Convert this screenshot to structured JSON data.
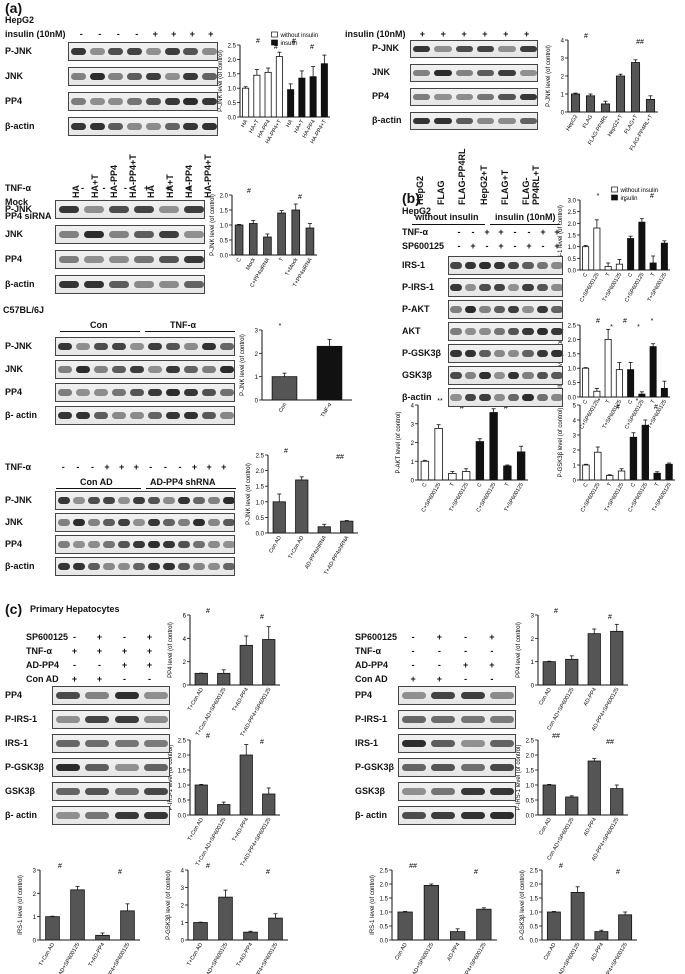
{
  "panels": {
    "a": "(a)",
    "b": "(b)",
    "c": "(c)"
  },
  "a1": {
    "cell": "HepG2",
    "insulin_label": "insulin (10nM)",
    "insulin_signs": [
      "-",
      "-",
      "-",
      "-",
      "+",
      "+",
      "+",
      "+"
    ],
    "rows": [
      "P-JNK",
      "JNK",
      "PP4",
      "β-actin"
    ],
    "lanes": [
      "HA",
      "HA+T",
      "HA-PP4",
      "HA-PP4+T",
      "HA",
      "HA+T",
      "HA-PP4",
      "HA-PP4+T"
    ]
  },
  "a2": {
    "insulin_label": "insulin (10nM)",
    "insulin_signs": [
      "+",
      "+",
      "+",
      "+",
      "+",
      "+"
    ],
    "rows": [
      "P-JNK",
      "JNK",
      "PP4",
      "β-actin"
    ],
    "lanes": [
      "HepG2",
      "FLAG",
      "FLAG-PP4RL",
      "HepG2+T",
      "FLAG+T",
      "FLAG-PP4RL+T"
    ]
  },
  "a3": {
    "rowlabels": [
      "TNF-α",
      "Mock",
      "PP4 siRNA"
    ],
    "signs": [
      [
        "-",
        "-",
        "-",
        "+",
        "+",
        "+"
      ],
      [
        "-",
        "+",
        "-",
        "-",
        "+",
        "-"
      ],
      [
        "-",
        "-",
        "+",
        "-",
        "-",
        "+"
      ]
    ],
    "rows": [
      "P-JNK",
      "JNK",
      "PP4",
      "β-actin"
    ]
  },
  "a4": {
    "strain": "C57BL/6J",
    "groups": [
      "Con",
      "TNF-α"
    ],
    "rows": [
      "P-JNK",
      "JNK",
      "PP4",
      "β- actin"
    ]
  },
  "a5": {
    "rowlabel": "TNF-α",
    "signs": [
      "-",
      "-",
      "-",
      "+",
      "+",
      "+",
      "-",
      "-",
      "-",
      "+",
      "+",
      "+"
    ],
    "groups": [
      "Con AD",
      "AD-PP4 shRNA"
    ],
    "rows": [
      "P-JNK",
      "JNK",
      "PP4",
      "β-actin"
    ]
  },
  "b": {
    "cell": "HepG2",
    "groups": [
      "without  insulin",
      "insulin (10nM)"
    ],
    "rowlabels": [
      "TNF-α",
      "SP600125"
    ],
    "signs": [
      [
        "-",
        "-",
        "+",
        "+",
        "-",
        "-",
        "+",
        "+"
      ],
      [
        "-",
        "+",
        "-",
        "+",
        "-",
        "+",
        "-",
        "+"
      ]
    ],
    "rows": [
      "IRS-1",
      "P-IRS-1",
      "P-AKT",
      "AKT",
      "P-GSK3β",
      "GSK3β",
      "β-actin"
    ]
  },
  "c": {
    "title": "Primary Hepatocytes",
    "left": {
      "rowlabels": [
        "SP600125",
        "TNF-α",
        "AD-PP4",
        "Con AD"
      ],
      "signs": [
        [
          "-",
          "+",
          "-",
          "+"
        ],
        [
          "+",
          "+",
          "+",
          "+"
        ],
        [
          "-",
          "-",
          "+",
          "+"
        ],
        [
          "+",
          "+",
          "-",
          "-"
        ]
      ],
      "rows": [
        "PP4",
        "P-IRS-1",
        "IRS-1",
        "P-GSK3β",
        "GSK3β",
        "β- actin"
      ]
    },
    "right": {
      "rowlabels": [
        "SP600125",
        "TNF-α",
        "AD-PP4",
        "Con AD"
      ],
      "signs": [
        [
          "-",
          "+",
          "-",
          "+"
        ],
        [
          "-",
          "-",
          "-",
          "-"
        ],
        [
          "-",
          "-",
          "+",
          "+"
        ],
        [
          "+",
          "+",
          "-",
          "-"
        ]
      ],
      "rows": [
        "PP4",
        "P-IRS-1",
        "IRS-1",
        "P-GSK3β",
        "GSK3β",
        "β- actin"
      ]
    }
  },
  "chart_data": [
    {
      "type": "bar",
      "id": "a1",
      "ylabel": "P-JNK level (of control)",
      "categories": [
        "HA",
        "HA+T",
        "HA-PP4",
        "HA-PP4+T",
        "HA",
        "HA+T",
        "HA-PP4",
        "HA-PP4+T"
      ],
      "legend": [
        "without insulin",
        "insulin"
      ],
      "values": [
        1.0,
        1.45,
        1.55,
        2.1,
        0.95,
        1.35,
        1.4,
        1.85
      ],
      "errors": [
        0.05,
        0.2,
        0.15,
        0.15,
        0.2,
        0.25,
        0.35,
        0.3
      ],
      "fill": [
        "w",
        "w",
        "w",
        "w",
        "k",
        "k",
        "k",
        "k"
      ],
      "ylim": [
        0,
        2.5
      ],
      "yticks": [
        "0.0",
        "0.5",
        "1.0",
        "1.5",
        "2.0",
        "2.5"
      ],
      "annotations": [
        "#",
        "#",
        "#",
        "#"
      ]
    },
    {
      "type": "bar",
      "id": "a2",
      "ylabel": "P-JNK level (of control)",
      "categories": [
        "HepG2",
        "FLAG",
        "FLAG-PP4RL",
        "HepG2+T",
        "FLAG+T",
        "FLAG-PP4RL+T"
      ],
      "values": [
        1.0,
        0.9,
        0.45,
        2.0,
        2.75,
        0.7
      ],
      "errors": [
        0.05,
        0.1,
        0.15,
        0.1,
        0.15,
        0.2
      ],
      "ylim": [
        0,
        4
      ],
      "yticks": [
        "0",
        "1",
        "2",
        "3",
        "4"
      ],
      "annotations": [
        "#",
        "##"
      ]
    },
    {
      "type": "bar",
      "id": "a3",
      "ylabel": "P-JNK level (of control)",
      "categories": [
        "C",
        "Mock",
        "C+PP4siRNA",
        "T",
        "T+Mock",
        "T+PP4siRNA"
      ],
      "values": [
        1.0,
        1.05,
        0.6,
        1.4,
        1.5,
        0.9
      ],
      "errors": [
        0.02,
        0.1,
        0.1,
        0.08,
        0.2,
        0.15
      ],
      "ylim": [
        0,
        2.0
      ],
      "yticks": [
        "0.0",
        "0.5",
        "1.0",
        "1.5",
        "2.0"
      ],
      "annotations": [
        "#",
        "#"
      ]
    },
    {
      "type": "bar",
      "id": "a4",
      "ylabel": "P-JNK level (of control)",
      "categories": [
        "Con",
        "TNF-α"
      ],
      "values": [
        1.0,
        2.3
      ],
      "errors": [
        0.15,
        0.3
      ],
      "ylim": [
        0,
        3
      ],
      "yticks": [
        "0",
        "1",
        "2",
        "3"
      ],
      "annotations": [
        "*"
      ]
    },
    {
      "type": "bar",
      "id": "a5",
      "ylabel": "P-JNK level (of control)",
      "categories": [
        "Con AD",
        "T+Con AD",
        "AD-PP4shRNA",
        "T+AD-PP4shRNA"
      ],
      "values": [
        1.0,
        1.7,
        0.2,
        0.38
      ],
      "errors": [
        0.25,
        0.1,
        0.08,
        0.02
      ],
      "ylim": [
        0,
        2.5
      ],
      "yticks": [
        "0.0",
        "0.5",
        "1.0",
        "1.5",
        "2.0",
        "2.5"
      ],
      "annotations": [
        "#",
        "##"
      ]
    },
    {
      "type": "bar",
      "id": "b1",
      "ylabel": "IRS-1 level (of control)",
      "categories": [
        "C",
        "C+SP600125",
        "T",
        "T+SP600125",
        "C",
        "C+SP600125",
        "T",
        "T+SP600125"
      ],
      "legend": [
        "without insulin",
        "insulin"
      ],
      "values": [
        1.0,
        1.8,
        0.15,
        0.25,
        1.35,
        2.05,
        0.3,
        1.15
      ],
      "errors": [
        0.05,
        0.35,
        0.15,
        0.2,
        0.1,
        0.15,
        0.3,
        0.1
      ],
      "fill": [
        "w",
        "w",
        "w",
        "w",
        "k",
        "k",
        "k",
        "k"
      ],
      "ylim": [
        0,
        3.0
      ],
      "yticks": [
        "0.0",
        "0.5",
        "1.0",
        "1.5",
        "2.0",
        "2.5",
        "3.0"
      ],
      "annotations": [
        "*",
        "*",
        "#"
      ]
    },
    {
      "type": "bar",
      "id": "b2",
      "ylabel": "P-IRS-1 level (of control)",
      "categories": [
        "C",
        "C+SP600125",
        "T",
        "T+SP600125",
        "C",
        "C+SP600125",
        "T",
        "T+SP600125"
      ],
      "values": [
        1.0,
        0.2,
        2.0,
        0.95,
        0.95,
        0.1,
        1.75,
        0.3
      ],
      "errors": [
        0.02,
        0.1,
        0.35,
        0.25,
        0.25,
        0.08,
        0.1,
        0.25
      ],
      "fill": [
        "w",
        "w",
        "w",
        "w",
        "k",
        "k",
        "k",
        "k"
      ],
      "ylim": [
        0,
        2.5
      ],
      "yticks": [
        "0.0",
        "0.5",
        "1.0",
        "1.5",
        "2.0",
        "2.5"
      ],
      "annotations": [
        "#",
        "*",
        "#",
        "*",
        "*"
      ]
    },
    {
      "type": "bar",
      "id": "b3",
      "ylabel": "P-AKT level (of control)",
      "categories": [
        "C",
        "C+SP600125",
        "T",
        "T+SP600125",
        "C",
        "C+SP600125",
        "T",
        "T+SP600125"
      ],
      "values": [
        1.0,
        2.75,
        0.35,
        0.45,
        2.05,
        3.6,
        0.75,
        1.5
      ],
      "errors": [
        0.05,
        0.2,
        0.1,
        0.15,
        0.15,
        0.2,
        0.05,
        0.3
      ],
      "fill": [
        "w",
        "w",
        "w",
        "w",
        "k",
        "k",
        "k",
        "k"
      ],
      "ylim": [
        0,
        4
      ],
      "yticks": [
        "0",
        "1",
        "2",
        "3",
        "4"
      ],
      "annotations": [
        "**",
        "#",
        "**",
        "#"
      ]
    },
    {
      "type": "bar",
      "id": "b4",
      "ylabel": "P-GSK3β level (of control)",
      "categories": [
        "C",
        "C+SP600125",
        "T",
        "T+SP600125",
        "C",
        "C+SP600125",
        "T",
        "T+SP600125"
      ],
      "values": [
        1.0,
        1.85,
        0.3,
        0.6,
        2.85,
        3.65,
        0.45,
        1.05
      ],
      "errors": [
        0.05,
        0.35,
        0.05,
        0.15,
        0.3,
        0.35,
        0.1,
        0.08
      ],
      "fill": [
        "w",
        "w",
        "w",
        "w",
        "k",
        "k",
        "k",
        "k"
      ],
      "ylim": [
        0,
        5
      ],
      "yticks": [
        "0",
        "1",
        "2",
        "3",
        "4",
        "5"
      ],
      "annotations": [
        "*",
        "#",
        "*",
        "#"
      ]
    },
    {
      "type": "bar",
      "id": "c1",
      "ylabel": "PP4 level (of control)",
      "categories": [
        "T+Con AD",
        "T+Con AD+SP600125",
        "T+AD-PP4",
        "T+AD-PP4+SP600125"
      ],
      "values": [
        1.0,
        1.0,
        3.4,
        3.9
      ],
      "errors": [
        0.02,
        0.3,
        0.8,
        1.1
      ],
      "ylim": [
        0,
        6
      ],
      "yticks": [
        "0",
        "2",
        "4",
        "6"
      ],
      "annotations": [
        "#",
        "#"
      ]
    },
    {
      "type": "bar",
      "id": "c2",
      "ylabel": "P-IRS-1 level (of control)",
      "categories": [
        "T+Con AD",
        "T+Con AD+SP600125",
        "T+AD-PP4",
        "T+AD-PP4+SP600125"
      ],
      "values": [
        1.0,
        0.35,
        2.0,
        0.7
      ],
      "errors": [
        0.02,
        0.08,
        0.35,
        0.2
      ],
      "ylim": [
        0,
        2.5
      ],
      "yticks": [
        "0.0",
        "0.5",
        "1.0",
        "1.5",
        "2.0",
        "2.5"
      ],
      "annotations": [
        "#",
        "#"
      ]
    },
    {
      "type": "bar",
      "id": "c3",
      "ylabel": "PP4 level (of control)",
      "categories": [
        "Con AD",
        "Con AD+SP600125",
        "AD-PP4",
        "AD-PP4+SP600125"
      ],
      "values": [
        1.0,
        1.1,
        2.2,
        2.3
      ],
      "errors": [
        0.02,
        0.15,
        0.2,
        0.3
      ],
      "ylim": [
        0,
        3
      ],
      "yticks": [
        "0",
        "1",
        "2",
        "3"
      ],
      "annotations": [
        "#",
        "#"
      ]
    },
    {
      "type": "bar",
      "id": "c4",
      "ylabel": "P-IRS-1 level (of control)",
      "categories": [
        "Con AD",
        "Con AD+SP600125",
        "AD-PP4",
        "AD-PP4+SP600125"
      ],
      "values": [
        1.0,
        0.6,
        1.8,
        0.88
      ],
      "errors": [
        0.02,
        0.04,
        0.08,
        0.12
      ],
      "ylim": [
        0,
        2.5
      ],
      "yticks": [
        "0.0",
        "0.5",
        "1.0",
        "1.5",
        "2.0",
        "2.5"
      ],
      "annotations": [
        "##",
        "##"
      ]
    },
    {
      "type": "bar",
      "id": "c5",
      "ylabel": "IRS-1 level (of control)",
      "categories": [
        "T+Con AD",
        "T+Con AD+SP600125",
        "T+AD-PP4",
        "T+AD-PP4+SP600125"
      ],
      "values": [
        1.0,
        2.15,
        0.2,
        1.25
      ],
      "errors": [
        0.02,
        0.15,
        0.1,
        0.3
      ],
      "ylim": [
        0,
        3
      ],
      "yticks": [
        "0",
        "1",
        "2",
        "3"
      ],
      "annotations": [
        "#",
        "#"
      ]
    },
    {
      "type": "bar",
      "id": "c6",
      "ylabel": "P-GSK3β level (of control)",
      "categories": [
        "T+Con AD",
        "T+Con AD+SP600125",
        "T+AD-PP4",
        "T+AD-PP4+SP600125"
      ],
      "values": [
        1.0,
        2.45,
        0.45,
        1.25
      ],
      "errors": [
        0.02,
        0.4,
        0.05,
        0.25
      ],
      "ylim": [
        0,
        4
      ],
      "yticks": [
        "0",
        "1",
        "2",
        "3",
        "4"
      ],
      "annotations": [
        "#",
        "#"
      ]
    },
    {
      "type": "bar",
      "id": "c7",
      "ylabel": "IRS-1 level (of control)",
      "categories": [
        "Con AD",
        "Con AD+SP600125",
        "AD-PP4",
        "AD-PP4+SP600125"
      ],
      "values": [
        1.0,
        1.95,
        0.3,
        1.1
      ],
      "errors": [
        0.02,
        0.05,
        0.1,
        0.05
      ],
      "ylim": [
        0,
        2.5
      ],
      "yticks": [
        "0.0",
        "0.5",
        "1.0",
        "1.5",
        "2.0",
        "2.5"
      ],
      "annotations": [
        "##",
        "#"
      ]
    },
    {
      "type": "bar",
      "id": "c8",
      "ylabel": "P-GSK3β level (of control)",
      "categories": [
        "Con AD",
        "Con AD+SP600125",
        "AD-PP4",
        "AD-PP4+SP600125"
      ],
      "values": [
        1.0,
        1.7,
        0.3,
        0.9
      ],
      "errors": [
        0.02,
        0.2,
        0.05,
        0.1
      ],
      "ylim": [
        0,
        2.5
      ],
      "yticks": [
        "0.0",
        "0.5",
        "1.0",
        "1.5",
        "2.0",
        "2.5"
      ],
      "annotations": [
        "#",
        "#"
      ]
    }
  ]
}
